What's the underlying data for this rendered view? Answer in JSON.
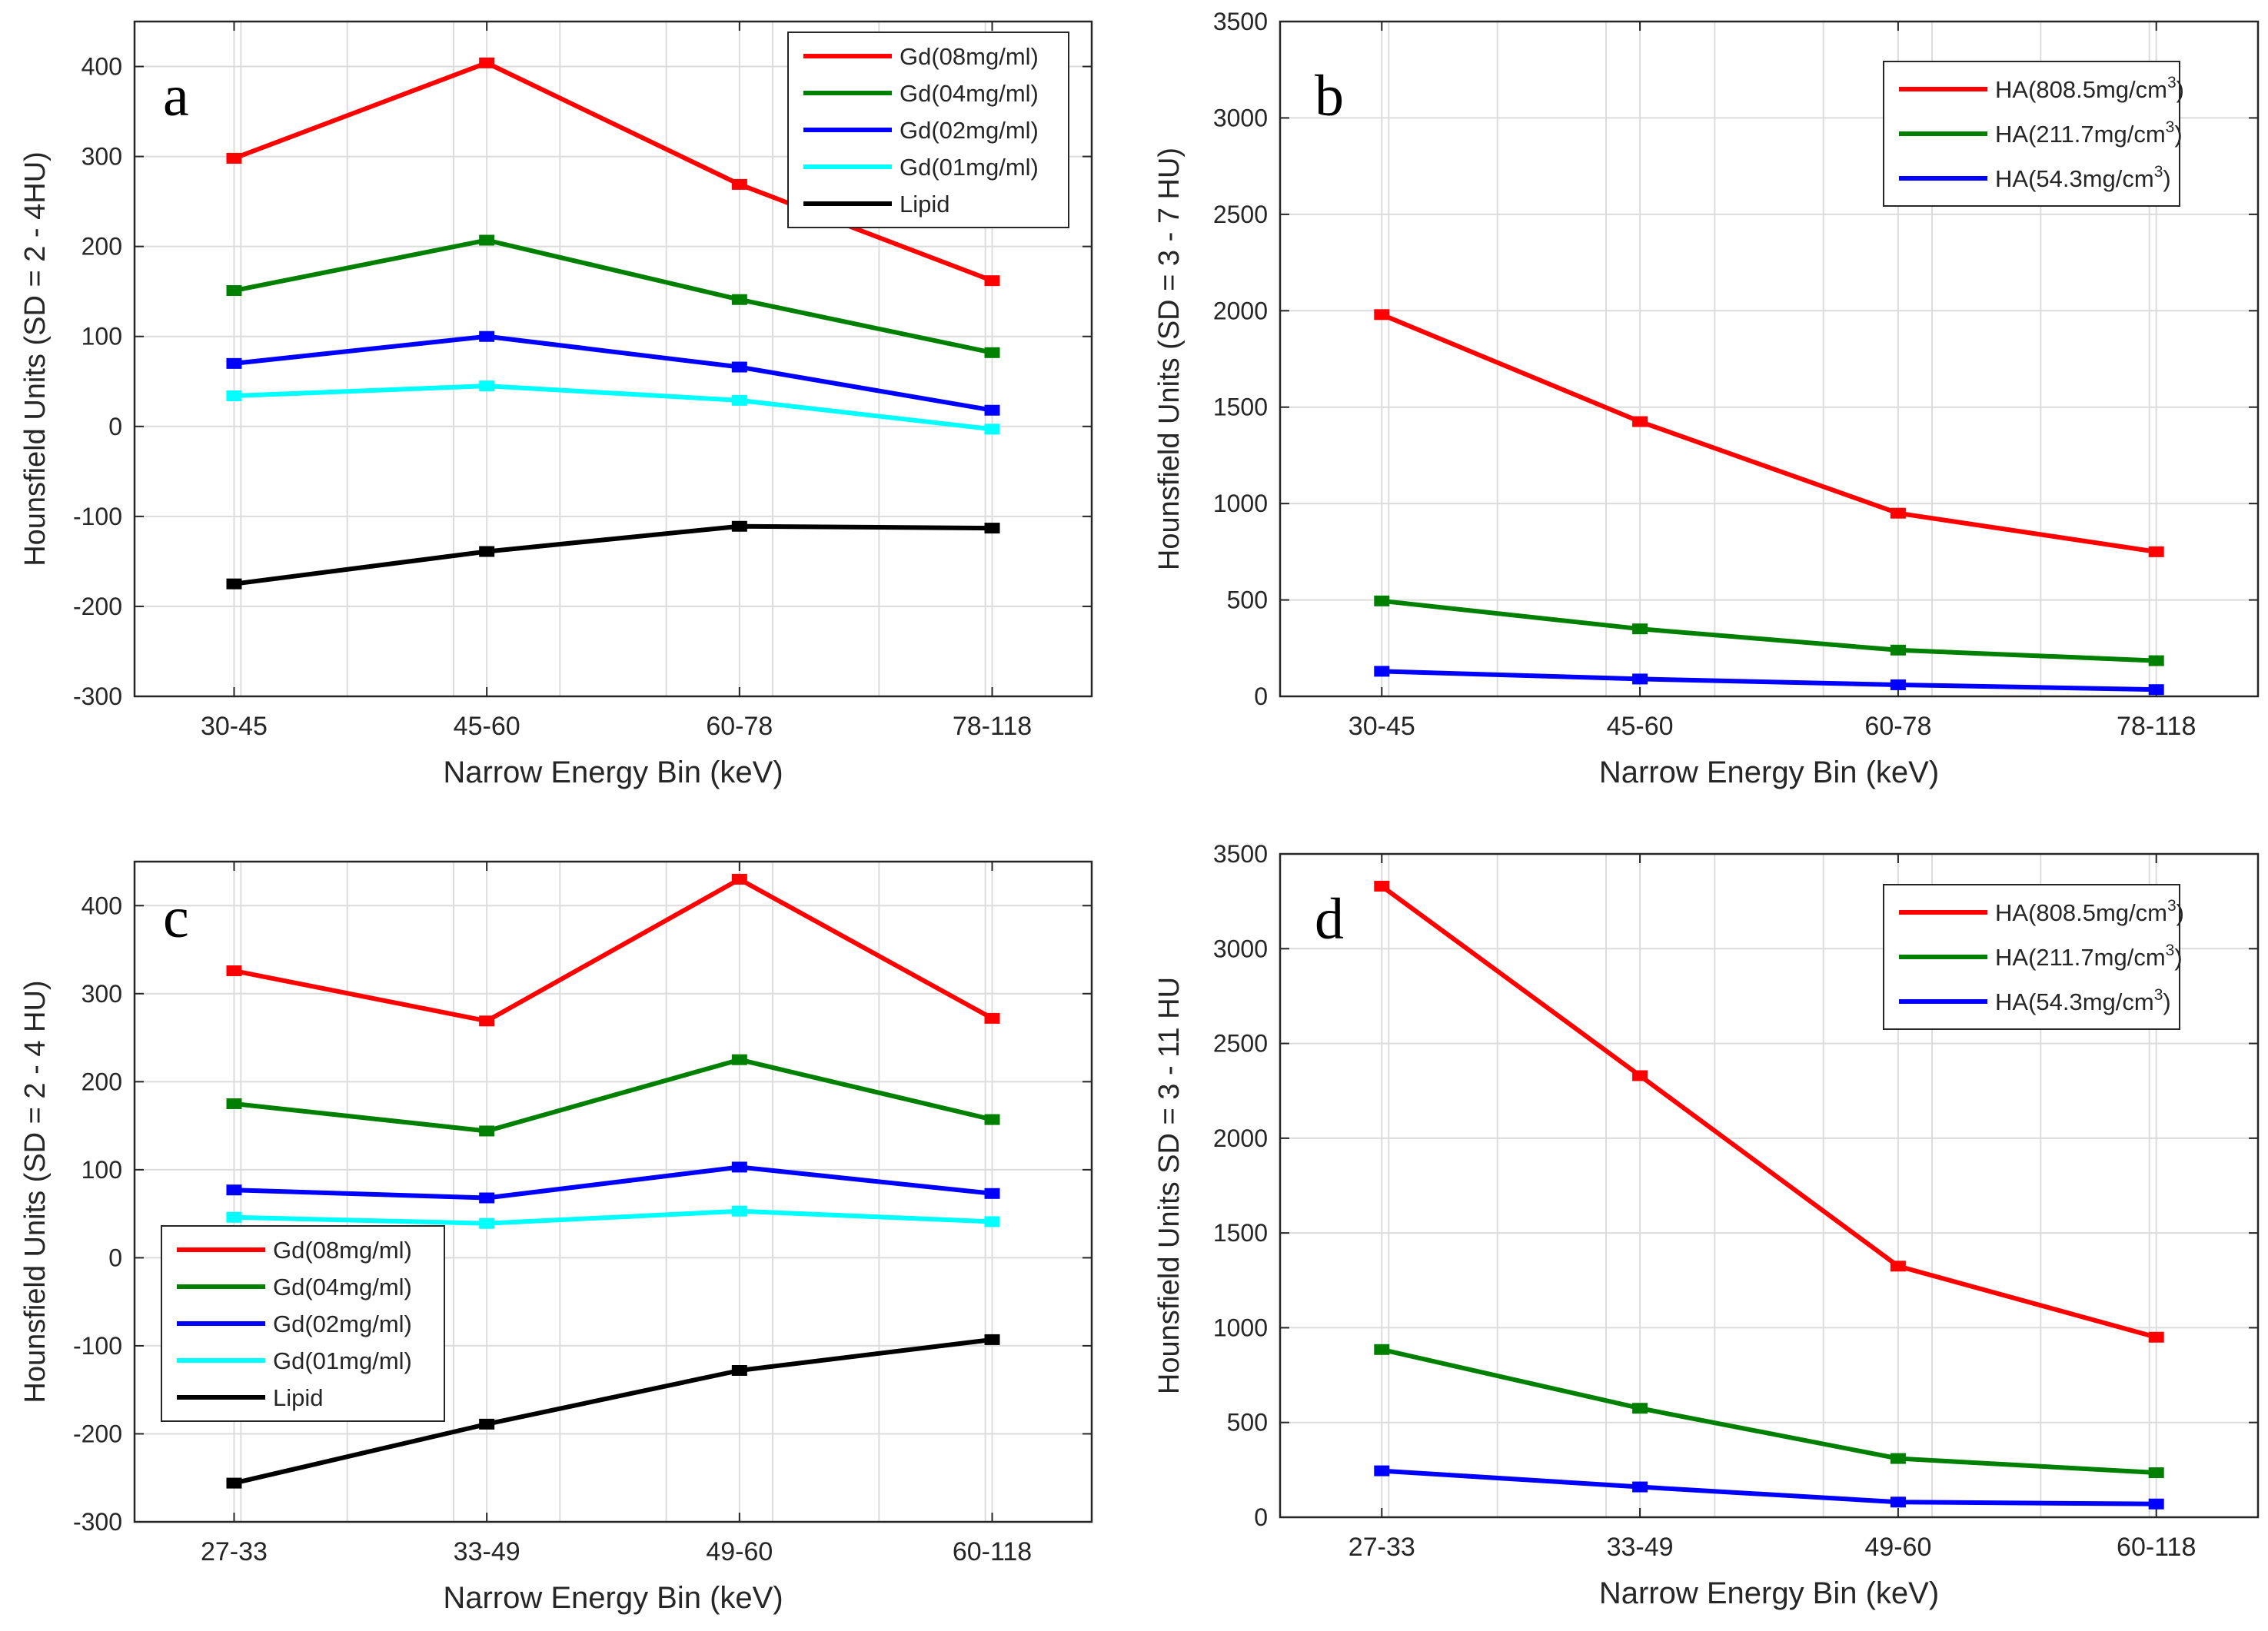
{
  "chart_data": [
    {
      "type": "line",
      "panel_label": "a",
      "xlabel": "Narrow Energy Bin (keV)",
      "ylabel": "Hounsfield Units (SD = 2 - 4HU)",
      "categories": [
        "30-45",
        "45-60",
        "60-78",
        "78-118"
      ],
      "ylim": [
        -300,
        450
      ],
      "yticks": [
        -300,
        -200,
        -100,
        0,
        100,
        200,
        300,
        400
      ],
      "ytick_labels": [
        "-300",
        "-200",
        "-100",
        "0",
        "100",
        "200",
        "300",
        "400"
      ],
      "grid": true,
      "legend_position": "top-right",
      "series": [
        {
          "name": "Gd(08mg/ml)",
          "color": "#ff0000",
          "values": [
            298,
            404,
            269,
            162
          ]
        },
        {
          "name": "Gd(04mg/ml)",
          "color": "#008000",
          "values": [
            151,
            207,
            141,
            82
          ]
        },
        {
          "name": "Gd(02mg/ml)",
          "color": "#0000ff",
          "values": [
            70,
            100,
            66,
            18
          ]
        },
        {
          "name": "Gd(01mg/ml)",
          "color": "#00ffff",
          "values": [
            34,
            45,
            29,
            -3
          ]
        },
        {
          "name": "Lipid",
          "color": "#000000",
          "values": [
            -175,
            -139,
            -111,
            -113
          ]
        }
      ]
    },
    {
      "type": "line",
      "panel_label": "b",
      "xlabel": "Narrow Energy Bin (keV)",
      "ylabel": "Hounsfield Units (SD = 3 - 7 HU)",
      "categories": [
        "30-45",
        "45-60",
        "60-78",
        "78-118"
      ],
      "ylim": [
        0,
        3500
      ],
      "yticks": [
        0,
        500,
        1000,
        1500,
        2000,
        2500,
        3000,
        3500
      ],
      "ytick_labels": [
        "0",
        "500",
        "1000",
        "1500",
        "2000",
        "2500",
        "3000",
        "3500"
      ],
      "grid": true,
      "legend_position": "top-right",
      "series": [
        {
          "name": "HA(808.5mg/cm",
          "sup": "3",
          "close": ")",
          "color": "#ff0000",
          "values": [
            1980,
            1425,
            950,
            750
          ]
        },
        {
          "name": "HA(211.7mg/cm",
          "sup": "3",
          "close": ")",
          "color": "#008000",
          "values": [
            495,
            350,
            240,
            185
          ]
        },
        {
          "name": "HA(54.3mg/cm",
          "sup": "3",
          "close": ")",
          "color": "#0000ff",
          "values": [
            130,
            90,
            60,
            35
          ]
        }
      ]
    },
    {
      "type": "line",
      "panel_label": "c",
      "xlabel": "Narrow Energy Bin (keV)",
      "ylabel": "Hounsfield Units (SD = 2 - 4 HU)",
      "categories": [
        "27-33",
        "33-49",
        "49-60",
        "60-118"
      ],
      "ylim": [
        -300,
        450
      ],
      "yticks": [
        -300,
        -200,
        -100,
        0,
        100,
        200,
        300,
        400
      ],
      "ytick_labels": [
        "-300",
        "-200",
        "-100",
        "0",
        "100",
        "200",
        "300",
        "400"
      ],
      "grid": true,
      "legend_position": "bottom-left",
      "series": [
        {
          "name": "Gd(08mg/ml)",
          "color": "#ff0000",
          "values": [
            326,
            269,
            430,
            272
          ]
        },
        {
          "name": "Gd(04mg/ml)",
          "color": "#008000",
          "values": [
            175,
            144,
            225,
            157
          ]
        },
        {
          "name": "Gd(02mg/ml)",
          "color": "#0000ff",
          "values": [
            77,
            68,
            103,
            73
          ]
        },
        {
          "name": "Gd(01mg/ml)",
          "color": "#00ffff",
          "values": [
            46,
            39,
            53,
            41
          ]
        },
        {
          "name": "Lipid",
          "color": "#000000",
          "values": [
            -256,
            -189,
            -128,
            -93
          ]
        }
      ]
    },
    {
      "type": "line",
      "panel_label": "d",
      "xlabel": "Narrow Energy Bin (keV)",
      "ylabel": "Hounsfield Units SD = 3 - 11 HU",
      "categories": [
        "27-33",
        "33-49",
        "49-60",
        "60-118"
      ],
      "ylim": [
        0,
        3500
      ],
      "yticks": [
        0,
        500,
        1000,
        1500,
        2000,
        2500,
        3000,
        3500
      ],
      "ytick_labels": [
        "0",
        "500",
        "1000",
        "1500",
        "2000",
        "2500",
        "3000",
        "3500"
      ],
      "grid": true,
      "legend_position": "top-right",
      "series": [
        {
          "name": "HA(808.5mg/cm",
          "sup": "3",
          "close": ")",
          "color": "#ff0000",
          "values": [
            3330,
            2330,
            1325,
            950
          ]
        },
        {
          "name": "HA(211.7mg/cm",
          "sup": "3",
          "close": ")",
          "color": "#008000",
          "values": [
            885,
            575,
            310,
            235
          ]
        },
        {
          "name": "HA(54.3mg/cm",
          "sup": "3",
          "close": ")",
          "color": "#0000ff",
          "values": [
            245,
            160,
            80,
            70
          ]
        }
      ]
    }
  ]
}
